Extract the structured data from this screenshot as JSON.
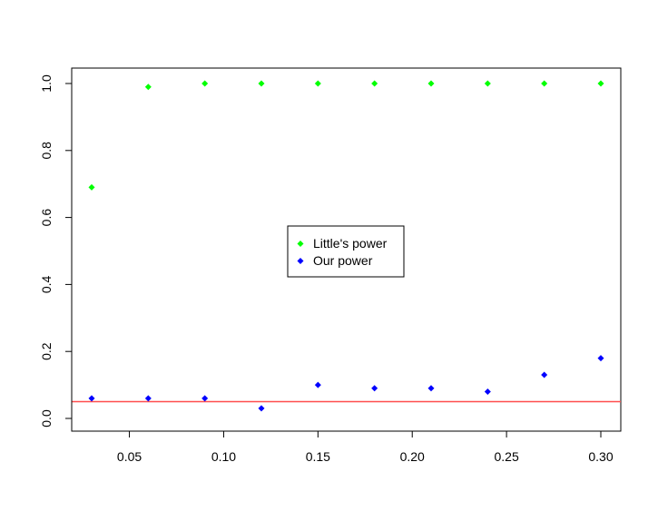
{
  "chart_data": {
    "type": "scatter",
    "title": "",
    "xlabel": "",
    "ylabel": "",
    "xlim": [
      0.03,
      0.3
    ],
    "ylim": [
      0.0,
      1.0
    ],
    "x_ticks": [
      "0.05",
      "0.10",
      "0.15",
      "0.20",
      "0.25",
      "0.30"
    ],
    "y_ticks": [
      "0.0",
      "0.2",
      "0.4",
      "0.6",
      "0.8",
      "1.0"
    ],
    "x": [
      0.03,
      0.06,
      0.09,
      0.12,
      0.15,
      0.18,
      0.21,
      0.24,
      0.27,
      0.3
    ],
    "series": [
      {
        "name": "Little's power",
        "color": "#00ff00",
        "values": [
          0.69,
          0.99,
          1.0,
          1.0,
          1.0,
          1.0,
          1.0,
          1.0,
          1.0,
          1.0
        ]
      },
      {
        "name": "Our power",
        "color": "#0000ff",
        "values": [
          0.06,
          0.06,
          0.06,
          0.03,
          0.1,
          0.09,
          0.09,
          0.08,
          0.13,
          0.18
        ]
      }
    ],
    "reference_line": {
      "y": 0.05,
      "color": "#ff4d4d"
    },
    "legend_position": "center",
    "grid": false
  }
}
